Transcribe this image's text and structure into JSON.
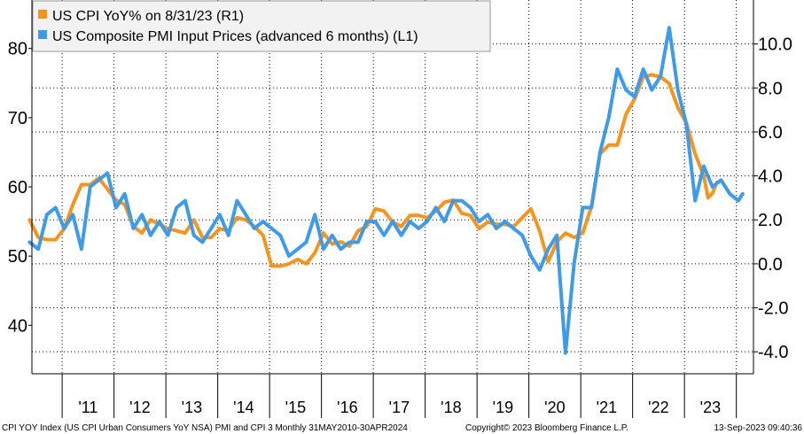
{
  "chart_data": {
    "type": "line",
    "title": "",
    "x_range": [
      "2010-05-31",
      "2024-04-30"
    ],
    "left_axis": {
      "ylim": [
        33,
        87
      ],
      "ticks": [
        40,
        50,
        60,
        70,
        80
      ]
    },
    "right_axis": {
      "ylim": [
        -5,
        12
      ],
      "ticks": [
        -4,
        -2,
        0,
        2,
        4,
        6,
        8,
        10
      ],
      "tick_labels": [
        "-4.0",
        "-2.0",
        "0.0",
        "2.0",
        "4.0",
        "6.0",
        "8.0",
        "10.0"
      ]
    },
    "x_tick_labels": [
      "'11",
      "'12",
      "'13",
      "'14",
      "'15",
      "'16",
      "'17",
      "'18",
      "'19",
      "'20",
      "'21",
      "'22",
      "'23"
    ],
    "grid": true,
    "legend_position": "top-left",
    "series": [
      {
        "name": "US CPI YoY% on 8/31/23 (R1)",
        "axis": "right",
        "color": "#f7941d",
        "points": [
          [
            "2010-05",
            2.0
          ],
          [
            "2010-07",
            1.2
          ],
          [
            "2010-09",
            1.1
          ],
          [
            "2010-11",
            1.1
          ],
          [
            "2011-01",
            1.6
          ],
          [
            "2011-03",
            2.7
          ],
          [
            "2011-05",
            3.6
          ],
          [
            "2011-07",
            3.6
          ],
          [
            "2011-09",
            3.9
          ],
          [
            "2011-11",
            3.4
          ],
          [
            "2012-01",
            2.9
          ],
          [
            "2012-03",
            2.7
          ],
          [
            "2012-05",
            1.7
          ],
          [
            "2012-07",
            1.4
          ],
          [
            "2012-09",
            2.0
          ],
          [
            "2012-11",
            1.8
          ],
          [
            "2013-01",
            1.6
          ],
          [
            "2013-03",
            1.5
          ],
          [
            "2013-05",
            1.4
          ],
          [
            "2013-07",
            2.0
          ],
          [
            "2013-09",
            1.2
          ],
          [
            "2013-11",
            1.2
          ],
          [
            "2014-01",
            1.6
          ],
          [
            "2014-03",
            1.5
          ],
          [
            "2014-05",
            2.1
          ],
          [
            "2014-07",
            2.0
          ],
          [
            "2014-09",
            1.7
          ],
          [
            "2014-11",
            1.3
          ],
          [
            "2015-01",
            -0.1
          ],
          [
            "2015-03",
            -0.1
          ],
          [
            "2015-05",
            0.0
          ],
          [
            "2015-07",
            0.2
          ],
          [
            "2015-09",
            0.0
          ],
          [
            "2015-11",
            0.5
          ],
          [
            "2016-01",
            1.4
          ],
          [
            "2016-03",
            0.9
          ],
          [
            "2016-05",
            1.0
          ],
          [
            "2016-07",
            0.8
          ],
          [
            "2016-09",
            1.5
          ],
          [
            "2016-11",
            1.7
          ],
          [
            "2017-01",
            2.5
          ],
          [
            "2017-03",
            2.4
          ],
          [
            "2017-05",
            1.9
          ],
          [
            "2017-07",
            1.7
          ],
          [
            "2017-09",
            2.2
          ],
          [
            "2017-11",
            2.2
          ],
          [
            "2018-01",
            2.1
          ],
          [
            "2018-03",
            2.4
          ],
          [
            "2018-05",
            2.8
          ],
          [
            "2018-07",
            2.9
          ],
          [
            "2018-09",
            2.3
          ],
          [
            "2018-11",
            2.2
          ],
          [
            "2019-01",
            1.6
          ],
          [
            "2019-03",
            1.9
          ],
          [
            "2019-05",
            1.8
          ],
          [
            "2019-07",
            1.8
          ],
          [
            "2019-09",
            1.7
          ],
          [
            "2019-11",
            2.1
          ],
          [
            "2020-01",
            2.5
          ],
          [
            "2020-03",
            1.5
          ],
          [
            "2020-05",
            0.1
          ],
          [
            "2020-07",
            1.0
          ],
          [
            "2020-09",
            1.4
          ],
          [
            "2020-11",
            1.2
          ],
          [
            "2021-01",
            1.4
          ],
          [
            "2021-03",
            2.6
          ],
          [
            "2021-05",
            5.0
          ],
          [
            "2021-07",
            5.4
          ],
          [
            "2021-09",
            5.4
          ],
          [
            "2021-11",
            6.8
          ],
          [
            "2022-01",
            7.5
          ],
          [
            "2022-03",
            8.5
          ],
          [
            "2022-05",
            8.6
          ],
          [
            "2022-07",
            8.5
          ],
          [
            "2022-09",
            8.2
          ],
          [
            "2022-11",
            7.1
          ],
          [
            "2023-01",
            6.4
          ],
          [
            "2023-03",
            5.0
          ],
          [
            "2023-05",
            4.0
          ],
          [
            "2023-06",
            3.0
          ],
          [
            "2023-07",
            3.2
          ],
          [
            "2023-08",
            3.7
          ]
        ]
      },
      {
        "name": "US Composite PMI Input Prices (advanced 6 months) (L1)",
        "axis": "left",
        "color": "#3d9be9",
        "points": [
          [
            "2010-05",
            52
          ],
          [
            "2010-07",
            51
          ],
          [
            "2010-09",
            56
          ],
          [
            "2010-11",
            57
          ],
          [
            "2011-01",
            54
          ],
          [
            "2011-03",
            56
          ],
          [
            "2011-05",
            51
          ],
          [
            "2011-07",
            60
          ],
          [
            "2011-09",
            61
          ],
          [
            "2011-11",
            62
          ],
          [
            "2012-01",
            57
          ],
          [
            "2012-03",
            59
          ],
          [
            "2012-05",
            54
          ],
          [
            "2012-07",
            56
          ],
          [
            "2012-09",
            53
          ],
          [
            "2012-11",
            55
          ],
          [
            "2013-01",
            53
          ],
          [
            "2013-03",
            57
          ],
          [
            "2013-05",
            58
          ],
          [
            "2013-07",
            53
          ],
          [
            "2013-09",
            52
          ],
          [
            "2013-11",
            54
          ],
          [
            "2014-01",
            56
          ],
          [
            "2014-03",
            53
          ],
          [
            "2014-05",
            58
          ],
          [
            "2014-07",
            56
          ],
          [
            "2014-09",
            54
          ],
          [
            "2014-11",
            55
          ],
          [
            "2015-01",
            54
          ],
          [
            "2015-03",
            53
          ],
          [
            "2015-05",
            50
          ],
          [
            "2015-07",
            51
          ],
          [
            "2015-09",
            52
          ],
          [
            "2015-11",
            56
          ],
          [
            "2016-01",
            51
          ],
          [
            "2016-03",
            53
          ],
          [
            "2016-05",
            51
          ],
          [
            "2016-07",
            52
          ],
          [
            "2016-09",
            52
          ],
          [
            "2016-11",
            55
          ],
          [
            "2017-01",
            55
          ],
          [
            "2017-03",
            53
          ],
          [
            "2017-05",
            55
          ],
          [
            "2017-07",
            53
          ],
          [
            "2017-09",
            55
          ],
          [
            "2017-11",
            54
          ],
          [
            "2018-01",
            55
          ],
          [
            "2018-03",
            57
          ],
          [
            "2018-05",
            55
          ],
          [
            "2018-07",
            58
          ],
          [
            "2018-09",
            58
          ],
          [
            "2018-11",
            57
          ],
          [
            "2019-01",
            55
          ],
          [
            "2019-03",
            56
          ],
          [
            "2019-05",
            54
          ],
          [
            "2019-07",
            55
          ],
          [
            "2019-09",
            54
          ],
          [
            "2019-11",
            53
          ],
          [
            "2020-01",
            50
          ],
          [
            "2020-03",
            48
          ],
          [
            "2020-05",
            51
          ],
          [
            "2020-07",
            53
          ],
          [
            "2020-09",
            36
          ],
          [
            "2020-11",
            49
          ],
          [
            "2021-01",
            57
          ],
          [
            "2021-03",
            57
          ],
          [
            "2021-05",
            65
          ],
          [
            "2021-07",
            70
          ],
          [
            "2021-09",
            77
          ],
          [
            "2021-11",
            74
          ],
          [
            "2022-01",
            73
          ],
          [
            "2022-03",
            77
          ],
          [
            "2022-05",
            74
          ],
          [
            "2022-07",
            76
          ],
          [
            "2022-09",
            83
          ],
          [
            "2022-11",
            74
          ],
          [
            "2023-01",
            69
          ],
          [
            "2023-03",
            58
          ],
          [
            "2023-05",
            63
          ],
          [
            "2023-07",
            60
          ],
          [
            "2023-09",
            61
          ],
          [
            "2023-11",
            59
          ],
          [
            "2024-01",
            58
          ],
          [
            "2024-02",
            59
          ]
        ]
      }
    ]
  },
  "footer": {
    "left": "CPI YOY Index (US CPI Urban Consumers YoY NSA) PMI and CPI 3  Monthly 31MAY2010-30APR2024",
    "center": "Copyright© 2023 Bloomberg Finance L.P.",
    "right": "13-Sep-2023 09:40:36"
  }
}
